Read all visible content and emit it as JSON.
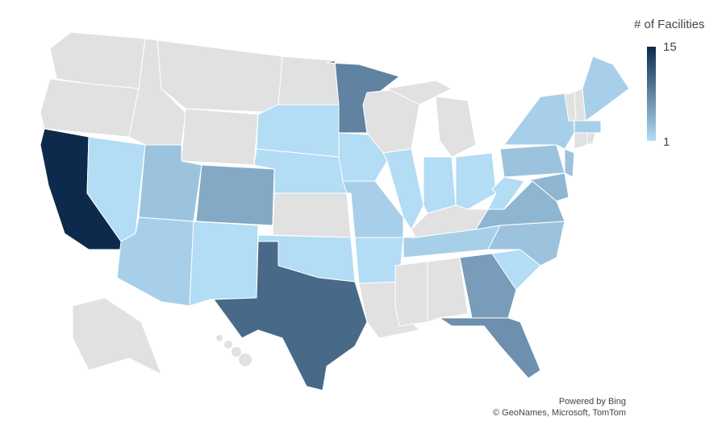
{
  "legend": {
    "title": "# of Facilities",
    "min": "1",
    "max": "15",
    "min_color": "#b3dcf5",
    "max_color": "#0d2a4c",
    "no_data_color": "#e1e1e1"
  },
  "attribution": {
    "line1": "Powered by Bing",
    "line2": "© GeoNames, Microsoft, TomTom"
  },
  "chart_data": {
    "type": "choropleth",
    "region": "United States",
    "value_label": "# of Facilities",
    "range": [
      1,
      15
    ],
    "values": {
      "CA": 15,
      "TX": 10,
      "MN": 8,
      "FL": 7,
      "GA": 6,
      "CO": 5,
      "VA": 4,
      "MD": 4,
      "PA": 3,
      "NC": 3,
      "NJ": 3,
      "UT": 3,
      "AZ": 2,
      "MA": 2,
      "NY": 2,
      "ME": 2,
      "TN": 2,
      "MO": 2,
      "IA": 1,
      "NE": 1,
      "SD": 1,
      "NV": 1,
      "NM": 1,
      "OK": 1,
      "AR": 1,
      "IL": 1,
      "IN": 1,
      "OH": 1,
      "WV": 1,
      "SC": 1
    },
    "no_data": [
      "WA",
      "OR",
      "ID",
      "MT",
      "WY",
      "ND",
      "KS",
      "LA",
      "WI",
      "MI",
      "KY",
      "MS",
      "AL",
      "VT",
      "NH",
      "CT",
      "RI",
      "AK",
      "HI"
    ]
  }
}
